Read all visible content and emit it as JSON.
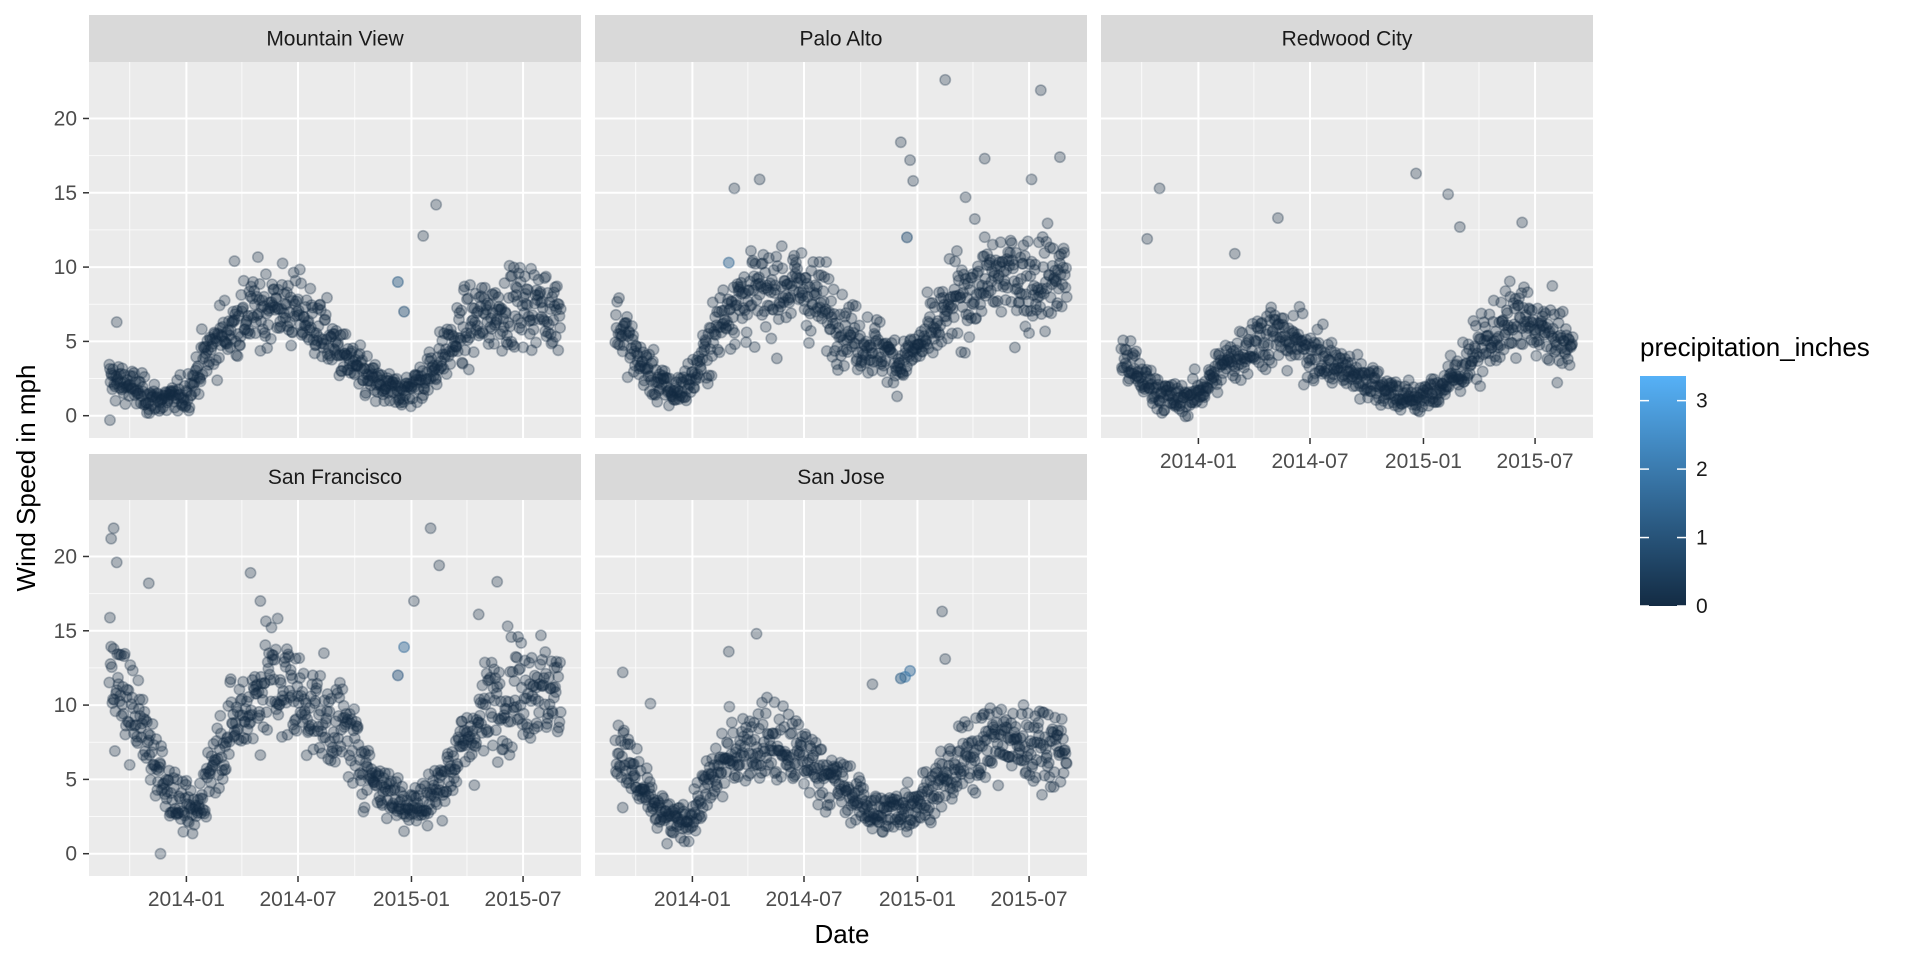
{
  "chart_data": {
    "type": "scatter",
    "title": "",
    "xlabel": "Date",
    "ylabel": "Wind Speed in mph",
    "facet_var": "city",
    "panels": [
      "Mountain View",
      "Palo Alto",
      "Redwood City",
      "San Francisco",
      "San Jose"
    ],
    "x_range": [
      "2013-08-29",
      "2015-08-31"
    ],
    "x_ticks": [
      "2014-01",
      "2014-07",
      "2015-01",
      "2015-07"
    ],
    "y_ticks": [
      0,
      5,
      10,
      15,
      20
    ],
    "ylim": [
      -1.5,
      23.8
    ],
    "grid": true,
    "color_scale": {
      "name": "precipitation_inches",
      "low_color": "#132B43",
      "high_color": "#56B1F7",
      "range": [
        0,
        3.36
      ],
      "breaks": [
        0,
        1,
        2,
        3
      ]
    },
    "legend_position": "right",
    "point_opacity": 0.3,
    "series": [
      {
        "name": "Mountain View",
        "trend": [
          [
            "2013-08-29",
            2.5
          ],
          [
            "2013-10-01",
            2.0
          ],
          [
            "2013-11-01",
            1.2
          ],
          [
            "2013-12-01",
            1.0
          ],
          [
            "2014-01-01",
            1.5
          ],
          [
            "2014-02-01",
            4.0
          ],
          [
            "2014-03-01",
            5.5
          ],
          [
            "2014-04-01",
            6.5
          ],
          [
            "2014-05-01",
            7.2
          ],
          [
            "2014-06-01",
            7.5
          ],
          [
            "2014-07-01",
            7.0
          ],
          [
            "2014-08-01",
            6.0
          ],
          [
            "2014-09-01",
            4.5
          ],
          [
            "2014-10-01",
            3.2
          ],
          [
            "2014-11-01",
            2.2
          ],
          [
            "2014-12-01",
            1.6
          ],
          [
            "2015-01-01",
            1.8
          ],
          [
            "2015-02-01",
            3.0
          ],
          [
            "2015-03-01",
            4.5
          ],
          [
            "2015-04-01",
            6.0
          ],
          [
            "2015-05-01",
            6.8
          ],
          [
            "2015-06-01",
            7.2
          ],
          [
            "2015-07-01",
            7.5
          ],
          [
            "2015-08-31",
            7.2
          ]
        ],
        "outliers": [
          [
            "2015-02-10",
            14.2
          ],
          [
            "2015-01-20",
            12.1
          ],
          [
            "2014-03-20",
            10.4
          ],
          [
            "2013-09-10",
            6.3
          ],
          [
            "2013-08-30",
            -0.3
          ]
        ],
        "rainy": [
          [
            "2014-12-10",
            9.0,
            1.2
          ],
          [
            "2014-12-20",
            7.0,
            0.9
          ]
        ]
      },
      {
        "name": "Palo Alto",
        "trend": [
          [
            "2013-08-29",
            6.5
          ],
          [
            "2013-10-01",
            4.0
          ],
          [
            "2013-11-01",
            2.5
          ],
          [
            "2013-12-01",
            1.5
          ],
          [
            "2014-01-01",
            2.5
          ],
          [
            "2014-02-01",
            5.0
          ],
          [
            "2014-03-01",
            7.5
          ],
          [
            "2014-04-01",
            8.0
          ],
          [
            "2014-05-01",
            8.2
          ],
          [
            "2014-06-01",
            8.8
          ],
          [
            "2014-07-01",
            8.5
          ],
          [
            "2014-08-01",
            7.5
          ],
          [
            "2014-09-01",
            6.0
          ],
          [
            "2014-10-01",
            5.0
          ],
          [
            "2014-11-01",
            4.5
          ],
          [
            "2014-12-01",
            3.5
          ],
          [
            "2015-01-01",
            4.5
          ],
          [
            "2015-02-01",
            6.0
          ],
          [
            "2015-03-01",
            7.5
          ],
          [
            "2015-04-01",
            8.5
          ],
          [
            "2015-05-01",
            9.2
          ],
          [
            "2015-06-01",
            9.5
          ],
          [
            "2015-07-01",
            9.0
          ],
          [
            "2015-08-31",
            9.5
          ]
        ],
        "outliers": [
          [
            "2015-02-15",
            22.6
          ],
          [
            "2015-07-20",
            21.9
          ],
          [
            "2014-12-05",
            18.4
          ],
          [
            "2014-12-20",
            17.2
          ],
          [
            "2015-08-20",
            17.4
          ],
          [
            "2015-04-20",
            17.3
          ],
          [
            "2014-03-10",
            15.3
          ],
          [
            "2014-04-20",
            15.9
          ],
          [
            "2015-03-20",
            14.7
          ],
          [
            "2014-12-25",
            15.8
          ],
          [
            "2015-07-05",
            15.9
          ]
        ],
        "rainy": [
          [
            "2014-03-01",
            10.3,
            1.5
          ],
          [
            "2014-12-15",
            12.0,
            0.8
          ]
        ]
      },
      {
        "name": "Redwood City",
        "trend": [
          [
            "2013-08-29",
            4.0
          ],
          [
            "2013-10-01",
            2.5
          ],
          [
            "2013-11-01",
            1.5
          ],
          [
            "2013-12-01",
            1.0
          ],
          [
            "2014-01-01",
            1.5
          ],
          [
            "2014-02-01",
            3.0
          ],
          [
            "2014-03-01",
            4.0
          ],
          [
            "2014-04-01",
            5.0
          ],
          [
            "2014-05-01",
            5.5
          ],
          [
            "2014-06-01",
            5.0
          ],
          [
            "2014-07-01",
            4.5
          ],
          [
            "2014-08-01",
            3.5
          ],
          [
            "2014-09-01",
            3.0
          ],
          [
            "2014-10-01",
            2.5
          ],
          [
            "2014-11-01",
            1.8
          ],
          [
            "2014-12-01",
            1.2
          ],
          [
            "2015-01-01",
            1.2
          ],
          [
            "2015-02-01",
            2.0
          ],
          [
            "2015-03-01",
            3.0
          ],
          [
            "2015-04-01",
            4.5
          ],
          [
            "2015-05-01",
            5.5
          ],
          [
            "2015-06-01",
            6.5
          ],
          [
            "2015-07-01",
            6.0
          ],
          [
            "2015-08-31",
            4.5
          ]
        ],
        "outliers": [
          [
            "2013-10-30",
            15.3
          ],
          [
            "2014-12-20",
            16.3
          ],
          [
            "2015-02-10",
            14.9
          ],
          [
            "2014-05-10",
            13.3
          ],
          [
            "2015-06-10",
            13.0
          ],
          [
            "2013-10-10",
            11.9
          ],
          [
            "2014-03-01",
            10.9
          ],
          [
            "2015-03-01",
            12.7
          ]
        ],
        "rainy": []
      },
      {
        "name": "San Francisco",
        "trend": [
          [
            "2013-08-29",
            13.0
          ],
          [
            "2013-09-20",
            10.5
          ],
          [
            "2013-10-15",
            9.0
          ],
          [
            "2013-11-15",
            6.0
          ],
          [
            "2013-12-15",
            3.5
          ],
          [
            "2014-01-15",
            2.5
          ],
          [
            "2014-02-15",
            6.5
          ],
          [
            "2014-03-15",
            8.5
          ],
          [
            "2014-04-15",
            10.0
          ],
          [
            "2014-05-15",
            12.0
          ],
          [
            "2014-06-15",
            11.0
          ],
          [
            "2014-07-15",
            10.0
          ],
          [
            "2014-08-15",
            9.0
          ],
          [
            "2014-09-15",
            8.5
          ],
          [
            "2014-10-15",
            6.0
          ],
          [
            "2014-11-15",
            4.5
          ],
          [
            "2014-12-15",
            3.5
          ],
          [
            "2015-01-15",
            3.2
          ],
          [
            "2015-02-15",
            4.5
          ],
          [
            "2015-03-15",
            6.5
          ],
          [
            "2015-04-15",
            8.5
          ],
          [
            "2015-05-15",
            10.5
          ],
          [
            "2015-06-15",
            11.0
          ],
          [
            "2015-07-15",
            11.5
          ],
          [
            "2015-08-31",
            10.5
          ]
        ],
        "outliers": [
          [
            "2013-09-05",
            21.9
          ],
          [
            "2013-09-10",
            19.6
          ],
          [
            "2013-09-01",
            21.2
          ],
          [
            "2015-02-01",
            21.9
          ],
          [
            "2015-02-15",
            19.4
          ],
          [
            "2014-04-15",
            18.9
          ],
          [
            "2015-05-20",
            18.3
          ],
          [
            "2013-11-01",
            18.2
          ],
          [
            "2015-01-05",
            17.0
          ],
          [
            "2014-05-01",
            17.0
          ],
          [
            "2015-04-20",
            16.1
          ],
          [
            "2013-11-20",
            0.0
          ]
        ],
        "rainy": [
          [
            "2014-12-20",
            13.9,
            1.6
          ],
          [
            "2014-12-10",
            12.0,
            1.0
          ]
        ]
      },
      {
        "name": "San Jose",
        "trend": [
          [
            "2013-08-29",
            7.5
          ],
          [
            "2013-10-01",
            5.0
          ],
          [
            "2013-11-01",
            3.0
          ],
          [
            "2013-12-01",
            2.0
          ],
          [
            "2014-01-01",
            2.5
          ],
          [
            "2014-02-01",
            5.0
          ],
          [
            "2014-03-01",
            6.5
          ],
          [
            "2014-04-01",
            7.5
          ],
          [
            "2014-05-01",
            7.5
          ],
          [
            "2014-06-01",
            7.0
          ],
          [
            "2014-07-01",
            6.5
          ],
          [
            "2014-08-01",
            5.5
          ],
          [
            "2014-09-01",
            4.5
          ],
          [
            "2014-10-01",
            3.5
          ],
          [
            "2014-11-01",
            2.5
          ],
          [
            "2014-12-01",
            3.0
          ],
          [
            "2015-01-01",
            3.5
          ],
          [
            "2015-02-01",
            4.5
          ],
          [
            "2015-03-01",
            5.5
          ],
          [
            "2015-04-01",
            7.0
          ],
          [
            "2015-05-01",
            7.8
          ],
          [
            "2015-06-01",
            7.5
          ],
          [
            "2015-07-01",
            7.5
          ],
          [
            "2015-08-31",
            7.2
          ]
        ],
        "outliers": [
          [
            "2015-02-10",
            16.3
          ],
          [
            "2014-04-15",
            14.8
          ],
          [
            "2014-03-01",
            13.6
          ],
          [
            "2015-02-15",
            13.1
          ],
          [
            "2013-09-10",
            12.2
          ],
          [
            "2014-10-20",
            11.4
          ],
          [
            "2013-10-25",
            10.1
          ]
        ],
        "rainy": [
          [
            "2014-12-20",
            12.3,
            1.6
          ],
          [
            "2014-12-12",
            11.9,
            1.9
          ],
          [
            "2014-12-05",
            11.8,
            1.2
          ]
        ]
      }
    ]
  }
}
